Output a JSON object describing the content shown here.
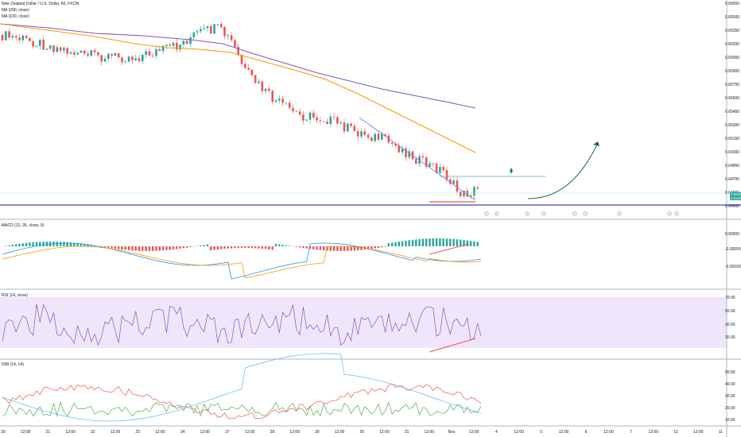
{
  "header": {
    "symbol_line": "New Zealand Dollar / U.S. Dollar, 60, FXCM",
    "ma1": "MA (200, close)",
    "ma2": "MA (100, close)"
  },
  "indicators": {
    "macd": "MACD (12, 26, close, 9)",
    "rsi": "RSI (14, close)",
    "dmi": "DMI (14, 14)"
  },
  "price_axis": [
    "0.66650",
    "0.66500",
    "0.66350",
    "0.66200",
    "0.66050",
    "0.65900",
    "0.65750",
    "0.65600",
    "0.65450",
    "0.65300",
    "0.65150",
    "0.65000",
    "0.64850",
    "0.64700",
    "0.64550",
    "0.64400"
  ],
  "price_tags": {
    "current": "0.64627",
    "alt": "0.64460"
  },
  "macd_axis": [
    "0.00000",
    "-0.00050",
    "-0.00100"
  ],
  "rsi_axis": [
    "70.00",
    "50.00",
    "30.00",
    "30.00"
  ],
  "dmi_axis": [
    "50.00",
    "40.00",
    "30.00",
    "20.00",
    "10.00"
  ],
  "x_axis": [
    "20",
    "12:00",
    "21",
    "12:00",
    "22",
    "12:00",
    "23",
    "12:00",
    "24",
    "12:00",
    "27",
    "12:00",
    "28",
    "12:00",
    "29",
    "12:00",
    "30",
    "12:00",
    "31",
    "12:00",
    "Nov",
    "12:00",
    "4",
    "12:00",
    "5",
    "12:00",
    "6",
    "12:00",
    "7",
    "12:00",
    "11",
    "12:00",
    "11"
  ],
  "colors": {
    "up": "#26a69a",
    "down": "#ef5350",
    "ma200": "#7e57c2",
    "ma100": "#ff9800",
    "blue_line": "#3f3fd6",
    "trend": "#7b7bf0",
    "arrow": "#1b6b50",
    "rsi_bg": "#f0e6fb"
  },
  "chart_data": {
    "type": "candlestick",
    "panes": [
      "price",
      "macd",
      "rsi",
      "dmi"
    ],
    "price_range": [
      0.644,
      0.667
    ]
  }
}
